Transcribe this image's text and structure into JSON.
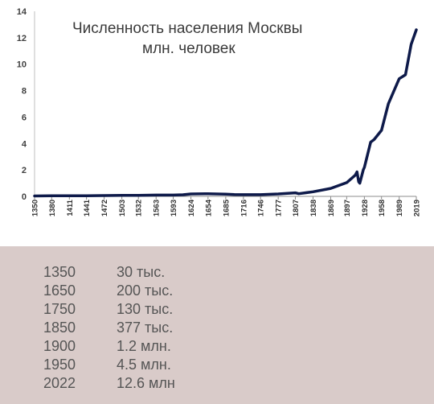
{
  "chart_data": {
    "type": "line",
    "title": "Численность населения Москвы",
    "subtitle": "млн. человек",
    "xlabel": "",
    "ylabel": "",
    "ylim": [
      0,
      14
    ],
    "yticks": [
      0,
      2,
      4,
      6,
      8,
      10,
      12,
      14
    ],
    "xlim": [
      1350,
      2019
    ],
    "xticks": [
      1350,
      1380,
      1411,
      1441,
      1472,
      1503,
      1532,
      1563,
      1593,
      1624,
      1654,
      1685,
      1716,
      1746,
      1777,
      1807,
      1838,
      1869,
      1897,
      1928,
      1958,
      1989,
      2019
    ],
    "grid": false,
    "legend": "none",
    "line_color": "#0e1a4a",
    "series": [
      {
        "x": [
          1350,
          1380,
          1411,
          1441,
          1472,
          1503,
          1532,
          1563,
          1593,
          1610,
          1624,
          1654,
          1685,
          1700,
          1716,
          1746,
          1777,
          1807,
          1813,
          1838,
          1869,
          1897,
          1912,
          1915,
          1918,
          1920,
          1926,
          1928,
          1939,
          1945,
          1958,
          1970,
          1980,
          1989,
          2000,
          2010,
          2019
        ],
        "y": [
          0.03,
          0.04,
          0.05,
          0.05,
          0.06,
          0.07,
          0.08,
          0.1,
          0.1,
          0.12,
          0.18,
          0.2,
          0.17,
          0.14,
          0.13,
          0.13,
          0.18,
          0.27,
          0.2,
          0.35,
          0.6,
          1.04,
          1.6,
          1.85,
          1.1,
          1.0,
          2.0,
          2.2,
          4.1,
          4.3,
          5.0,
          7.0,
          8.0,
          8.9,
          9.2,
          11.5,
          12.6
        ]
      }
    ]
  },
  "table": {
    "rows": [
      {
        "year": "1350",
        "population": "30 тыс."
      },
      {
        "year": "1650",
        "population": "200 тыс."
      },
      {
        "year": "1750",
        "population": "130 тыс."
      },
      {
        "year": "1850",
        "population": "377 тыс."
      },
      {
        "year": "1900",
        "population": "1.2 млн."
      },
      {
        "year": "1950",
        "population": "4.5 млн."
      },
      {
        "year": "2022",
        "population": "12.6 млн"
      }
    ]
  }
}
